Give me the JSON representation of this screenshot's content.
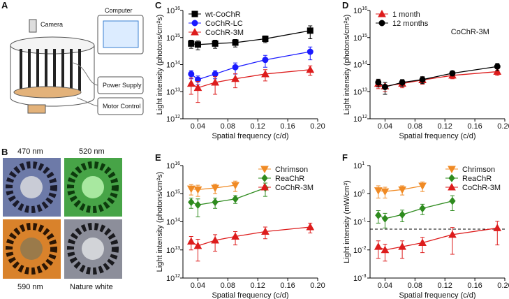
{
  "panel_labels": [
    "A",
    "B",
    "C",
    "D",
    "E",
    "F"
  ],
  "diagram": {
    "labels": [
      "Camera",
      "Computer",
      "Power Supply",
      "Motor Control"
    ]
  },
  "photos": {
    "labels": [
      "470 nm",
      "520 nm",
      "590 nm",
      "Nature white"
    ]
  },
  "chart_data": [
    {
      "type": "line",
      "log_y": true,
      "legend": "upper left",
      "xlabel": "Spatial frequency (c/d)",
      "ylabel": "Light intensity (photons/cm²s)",
      "xlim": [
        0.02,
        0.2
      ],
      "xticks": [
        0.04,
        0.08,
        0.12,
        0.16,
        {
          "value": 0.2,
          "label": "0.20"
        }
      ],
      "ylim": [
        1000000000000.0,
        1e+16
      ],
      "yticks": [
        {
          "value": 1000000000000.0,
          "label": "10",
          "exponent": "12"
        },
        {
          "value": 10000000000000.0,
          "label": "10",
          "exponent": "13"
        },
        {
          "value": 100000000000000.0,
          "label": "10",
          "exponent": "14"
        },
        {
          "value": 1000000000000000.0,
          "label": "10",
          "exponent": "15"
        },
        {
          "value": 1e+16,
          "label": "10",
          "exponent": "16"
        }
      ],
      "series": [
        {
          "name": "wt-CoChR",
          "color": "#000000",
          "marker": "square",
          "x": [
            0.031,
            0.04,
            0.063,
            0.09,
            0.13,
            0.19
          ],
          "values": [
            600000000000000.0,
            550000000000000.0,
            600000000000000.0,
            650000000000000.0,
            900000000000000.0,
            1800000000000000.0
          ],
          "errors": [
            200000000000000.0,
            200000000000000.0,
            200000000000000.0,
            200000000000000.0,
            250000000000000.0,
            900000000000000.0
          ]
        },
        {
          "name": "CoChR-LC",
          "color": "#1a1aff",
          "marker": "circle",
          "x": [
            0.031,
            0.04,
            0.063,
            0.09,
            0.13,
            0.19
          ],
          "values": [
            45000000000000.0,
            28000000000000.0,
            45000000000000.0,
            80000000000000.0,
            150000000000000.0,
            300000000000000.0
          ],
          "errors": [
            15000000000000.0,
            10000000000000.0,
            15000000000000.0,
            35000000000000.0,
            70000000000000.0,
            150000000000000.0
          ]
        },
        {
          "name": "CoChR-3M",
          "color": "#dd1c1c",
          "marker": "triangle",
          "x": [
            0.031,
            0.04,
            0.063,
            0.09,
            0.13,
            0.19
          ],
          "values": [
            20000000000000.0,
            14000000000000.0,
            22000000000000.0,
            30000000000000.0,
            45000000000000.0,
            65000000000000.0
          ],
          "errors": [
            12000000000000.0,
            10000000000000.0,
            14000000000000.0,
            16000000000000.0,
            20000000000000.0,
            25000000000000.0
          ]
        }
      ]
    },
    {
      "type": "line",
      "log_y": true,
      "legend": "upper left",
      "annotation": "CoChR-3M",
      "xlabel": "Spatial frequency (c/d)",
      "ylabel": "Light intensity (photons/cm²s)",
      "xlim": [
        0.02,
        0.2
      ],
      "xticks": [
        0.04,
        0.08,
        0.12,
        0.16,
        {
          "value": 0.2,
          "label": "0.20"
        }
      ],
      "ylim": [
        1000000000000.0,
        1e+16
      ],
      "yticks": [
        {
          "value": 1000000000000.0,
          "label": "10",
          "exponent": "12"
        },
        {
          "value": 10000000000000.0,
          "label": "10",
          "exponent": "13"
        },
        {
          "value": 100000000000000.0,
          "label": "10",
          "exponent": "14"
        },
        {
          "value": 1000000000000000.0,
          "label": "10",
          "exponent": "15"
        },
        {
          "value": 1e+16,
          "label": "10",
          "exponent": "16"
        }
      ],
      "series": [
        {
          "name": "1 month",
          "color": "#dd1c1c",
          "marker": "triangle",
          "x": [
            0.031,
            0.04,
            0.063,
            0.09,
            0.13,
            0.19
          ],
          "values": [
            20000000000000.0,
            16000000000000.0,
            20000000000000.0,
            27000000000000.0,
            40000000000000.0,
            55000000000000.0
          ],
          "errors": [
            7000000000000.0,
            6000000000000.0,
            6000000000000.0,
            8000000000000.0,
            10000000000000.0,
            15000000000000.0
          ]
        },
        {
          "name": "12 months",
          "color": "#000000",
          "marker": "circle",
          "x": [
            0.031,
            0.04,
            0.063,
            0.09,
            0.13,
            0.19
          ],
          "values": [
            22000000000000.0,
            15000000000000.0,
            22000000000000.0,
            28000000000000.0,
            48000000000000.0,
            85000000000000.0
          ],
          "errors": [
            7000000000000.0,
            7000000000000.0,
            6000000000000.0,
            8000000000000.0,
            10000000000000.0,
            25000000000000.0
          ]
        }
      ]
    },
    {
      "type": "line",
      "log_y": true,
      "legend": "upper right",
      "xlabel": "Spatial frequency (c/d)",
      "ylabel": "Light intensity (photons/cm²s)",
      "xlim": [
        0.02,
        0.2
      ],
      "xticks": [
        0.04,
        0.08,
        0.12,
        0.16,
        {
          "value": 0.2,
          "label": "0.20"
        }
      ],
      "ylim": [
        1000000000000.0,
        1e+16
      ],
      "yticks": [
        {
          "value": 1000000000000.0,
          "label": "10",
          "exponent": "12"
        },
        {
          "value": 10000000000000.0,
          "label": "10",
          "exponent": "13"
        },
        {
          "value": 100000000000000.0,
          "label": "10",
          "exponent": "14"
        },
        {
          "value": 1000000000000000.0,
          "label": "10",
          "exponent": "15"
        },
        {
          "value": 1e+16,
          "label": "10",
          "exponent": "16"
        }
      ],
      "series": [
        {
          "name": "Chrimson",
          "color": "#f08a24",
          "marker": "triangle-down",
          "x": [
            0.031,
            0.04,
            0.063,
            0.09
          ],
          "values": [
            1500000000000000.0,
            1400000000000000.0,
            1600000000000000.0,
            2000000000000000.0
          ],
          "errors": [
            600000000000000.0,
            600000000000000.0,
            600000000000000.0,
            800000000000000.0
          ]
        },
        {
          "name": "ReaChR",
          "color": "#2e8b1e",
          "marker": "diamond",
          "x": [
            0.031,
            0.04,
            0.063,
            0.09,
            0.13
          ],
          "values": [
            500000000000000.0,
            400000000000000.0,
            500000000000000.0,
            650000000000000.0,
            1600000000000000.0
          ],
          "errors": [
            200000000000000.0,
            250000000000000.0,
            200000000000000.0,
            200000000000000.0,
            800000000000000.0
          ]
        },
        {
          "name": "CoChR-3M",
          "color": "#dd1c1c",
          "marker": "triangle",
          "x": [
            0.031,
            0.04,
            0.063,
            0.09,
            0.13,
            0.19
          ],
          "values": [
            20000000000000.0,
            14000000000000.0,
            22000000000000.0,
            30000000000000.0,
            45000000000000.0,
            65000000000000.0
          ],
          "errors": [
            10000000000000.0,
            10000000000000.0,
            13000000000000.0,
            15000000000000.0,
            20000000000000.0,
            25000000000000.0
          ]
        }
      ]
    },
    {
      "type": "line",
      "log_y": true,
      "legend": "upper right",
      "reference_line": 0.055,
      "xlabel": "Spatial frequency (c/d)",
      "ylabel": "Light intensity (mW/cm²)",
      "xlim": [
        0.02,
        0.2
      ],
      "xticks": [
        0.04,
        0.08,
        0.12,
        0.16,
        {
          "value": 0.2,
          "label": "0.20"
        }
      ],
      "ylim": [
        0.001,
        10
      ],
      "yticks": [
        {
          "value": 0.001,
          "label": "10",
          "exponent": "-3"
        },
        {
          "value": 0.01,
          "label": "10",
          "exponent": "-2"
        },
        {
          "value": 0.1,
          "label": "10",
          "exponent": "-1"
        },
        {
          "value": 1,
          "label": "10",
          "exponent": "0"
        },
        {
          "value": 10,
          "label": "10",
          "exponent": "1"
        }
      ],
      "series": [
        {
          "name": "Chrimson",
          "color": "#f08a24",
          "marker": "triangle-down",
          "x": [
            0.031,
            0.04,
            0.063,
            0.09
          ],
          "values": [
            1.3,
            1.2,
            1.4,
            1.9
          ],
          "errors": [
            0.6,
            0.5,
            0.5,
            0.7
          ]
        },
        {
          "name": "ReaChR",
          "color": "#2e8b1e",
          "marker": "diamond",
          "x": [
            0.031,
            0.04,
            0.063,
            0.09,
            0.13
          ],
          "values": [
            0.17,
            0.13,
            0.18,
            0.3,
            0.55
          ],
          "errors": [
            0.08,
            0.07,
            0.08,
            0.12,
            0.3
          ]
        },
        {
          "name": "CoChR-3M",
          "color": "#dd1c1c",
          "marker": "triangle",
          "x": [
            0.031,
            0.04,
            0.063,
            0.09,
            0.13,
            0.19
          ],
          "values": [
            0.013,
            0.01,
            0.013,
            0.018,
            0.035,
            0.06
          ],
          "errors": [
            0.008,
            0.006,
            0.008,
            0.01,
            0.028,
            0.045
          ]
        }
      ]
    }
  ]
}
